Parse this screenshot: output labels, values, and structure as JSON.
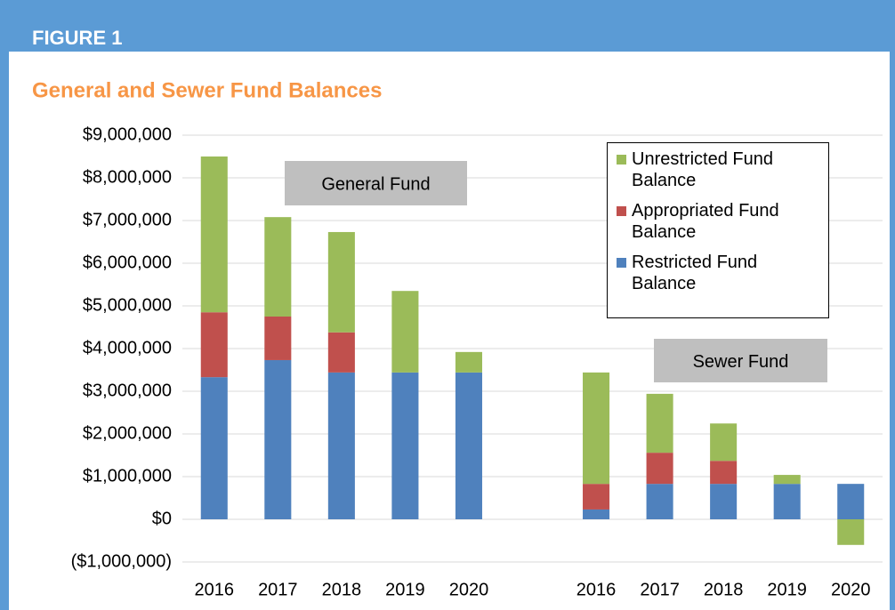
{
  "chart_data": {
    "type": "stacked_bar",
    "figure_label": "FIGURE 1",
    "title": "General and Sewer Fund Balances",
    "annotations": [
      "General Fund",
      "Sewer Fund"
    ],
    "categories": [
      "2016",
      "2017",
      "2018",
      "2019",
      "2020",
      null,
      "2016",
      "2017",
      "2018",
      "2019",
      "2020"
    ],
    "series": [
      {
        "name": "Restricted Fund Balance",
        "color": "#4f81bd",
        "values": [
          3330000,
          3730000,
          3440000,
          3440000,
          3440000,
          null,
          230000,
          830000,
          830000,
          830000,
          830000
        ]
      },
      {
        "name": "Appropriated Fund Balance",
        "color": "#c0504d",
        "values": [
          1520000,
          1020000,
          940000,
          0,
          0,
          null,
          600000,
          730000,
          540000,
          0,
          0
        ]
      },
      {
        "name": "Unrestricted Fund Balance",
        "color": "#9bbb59",
        "values": [
          3650000,
          2330000,
          2350000,
          1910000,
          480000,
          null,
          2610000,
          1380000,
          875000,
          210000,
          -600000
        ]
      }
    ],
    "ylim": [
      -1000000,
      9000000
    ],
    "yticks": [
      {
        "value": -1000000,
        "label": "($1,000,000)"
      },
      {
        "value": 0,
        "label": "$0"
      },
      {
        "value": 1000000,
        "label": "$1,000,000"
      },
      {
        "value": 2000000,
        "label": "$2,000,000"
      },
      {
        "value": 3000000,
        "label": "$3,000,000"
      },
      {
        "value": 4000000,
        "label": "$4,000,000"
      },
      {
        "value": 5000000,
        "label": "$5,000,000"
      },
      {
        "value": 6000000,
        "label": "$6,000,000"
      },
      {
        "value": 7000000,
        "label": "$7,000,000"
      },
      {
        "value": 8000000,
        "label": "$8,000,000"
      },
      {
        "value": 9000000,
        "label": "$9,000,000"
      }
    ],
    "grid": true,
    "legend_position": "upper right"
  }
}
